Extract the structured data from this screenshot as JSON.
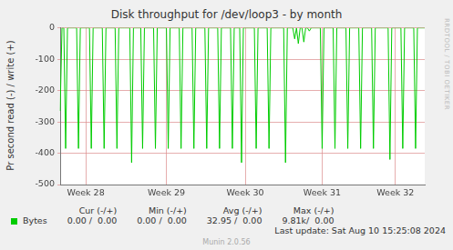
{
  "chart_data": {
    "type": "line",
    "title": "Disk throughput for /dev/loop3 - by month",
    "y_label": "Pr second read (-) / write (+)",
    "categories": [
      null,
      null,
      null,
      null,
      null,
      null,
      null,
      null,
      null,
      null,
      null,
      null,
      null,
      null,
      "Week 28",
      null,
      null,
      null,
      null,
      null,
      null,
      null,
      null,
      null,
      null,
      null,
      null,
      null,
      null,
      null,
      null,
      null,
      null,
      null,
      null,
      null,
      null,
      null,
      null,
      null,
      null,
      null,
      null,
      null,
      null,
      null,
      null,
      null,
      null,
      null,
      null,
      null,
      null,
      null,
      null,
      null,
      null,
      null,
      "Week 29",
      null,
      null,
      null,
      null,
      null,
      null,
      null,
      null,
      null,
      null,
      null,
      null,
      null,
      null,
      null,
      null,
      null,
      null,
      null,
      null,
      null,
      null,
      null,
      null,
      null,
      null,
      null,
      null,
      null,
      null,
      null,
      null,
      null,
      null,
      null,
      null,
      null,
      null,
      null,
      null,
      null,
      null,
      "Week 30",
      null,
      null,
      null,
      null,
      null,
      null,
      null,
      null,
      null,
      null,
      null,
      null,
      null,
      null,
      null,
      null,
      null,
      null,
      null,
      null,
      null,
      null,
      null,
      null,
      null,
      null,
      null,
      null,
      null,
      null,
      null,
      null,
      null,
      null,
      null,
      null,
      null,
      null,
      null,
      null,
      null,
      "Week 31",
      null,
      null,
      null,
      null,
      null,
      null,
      null,
      null,
      null,
      null,
      null,
      null,
      null,
      null,
      null,
      null,
      null,
      null,
      null,
      null,
      null,
      null,
      null,
      null,
      null,
      null,
      null,
      null,
      null,
      null,
      null,
      null,
      null,
      null,
      null,
      null,
      null,
      null,
      null,
      "Week 32",
      null,
      null,
      null,
      null,
      null,
      null,
      null,
      null,
      null,
      null,
      null,
      null,
      null,
      null,
      null,
      null
    ],
    "series": [
      {
        "name": "Bytes",
        "color": "#00cc00",
        "values": [
          -265,
          0,
          0,
          -385,
          0,
          0,
          0,
          0,
          0,
          0,
          -385,
          0,
          0,
          0,
          0,
          0,
          0,
          -385,
          0,
          0,
          0,
          0,
          0,
          0,
          -385,
          0,
          0,
          0,
          0,
          0,
          0,
          -385,
          0,
          0,
          0,
          0,
          0,
          0,
          0,
          -430,
          0,
          0,
          0,
          0,
          0,
          -385,
          0,
          0,
          0,
          0,
          0,
          0,
          -385,
          0,
          0,
          0,
          0,
          0,
          0,
          -385,
          0,
          0,
          0,
          0,
          0,
          0,
          -385,
          0,
          0,
          0,
          0,
          0,
          0,
          -385,
          0,
          0,
          0,
          0,
          0,
          0,
          -385,
          0,
          0,
          0,
          0,
          0,
          0,
          -385,
          0,
          0,
          0,
          0,
          0,
          0,
          -385,
          0,
          0,
          0,
          0,
          -430,
          0,
          0,
          0,
          0,
          0,
          0,
          0,
          -385,
          0,
          0,
          0,
          0,
          0,
          0,
          -385,
          0,
          0,
          0,
          0,
          0,
          0,
          0,
          0,
          -430,
          0,
          0,
          0,
          0,
          -35,
          0,
          -50,
          0,
          0,
          -45,
          0,
          0,
          -10,
          0,
          0,
          0,
          0,
          0,
          0,
          -385,
          0,
          0,
          0,
          0,
          0,
          0,
          -385,
          0,
          0,
          0,
          0,
          0,
          0,
          -385,
          0,
          0,
          0,
          0,
          0,
          0,
          -385,
          0,
          0,
          0,
          0,
          0,
          0,
          -385,
          0,
          0,
          0,
          0,
          0,
          0,
          0,
          0,
          -420,
          0,
          0,
          0,
          0,
          0,
          0,
          -385,
          0,
          0,
          0,
          0,
          0,
          0,
          -385,
          0,
          0,
          0,
          0,
          0
        ]
      }
    ],
    "ylim": [
      -500,
      0
    ],
    "yticks": [
      -500,
      -400,
      -300,
      -200,
      -100,
      0
    ],
    "grid": true,
    "legend_table": {
      "columns": [
        "Cur (-/+)",
        "Min (-/+)",
        "Avg (-/+)",
        "Max (-/+)"
      ],
      "rows": [
        [
          "0.00 /  0.00",
          "0.00 /  0.00",
          "32.95 /  0.00",
          "9.81k/  0.00"
        ]
      ]
    },
    "last_update": "Last update: Sat Aug 10 15:25:08 2024",
    "footer": "Munin 2.0.56",
    "side_text": "RRDTOOL / TOBI OETIKER"
  }
}
